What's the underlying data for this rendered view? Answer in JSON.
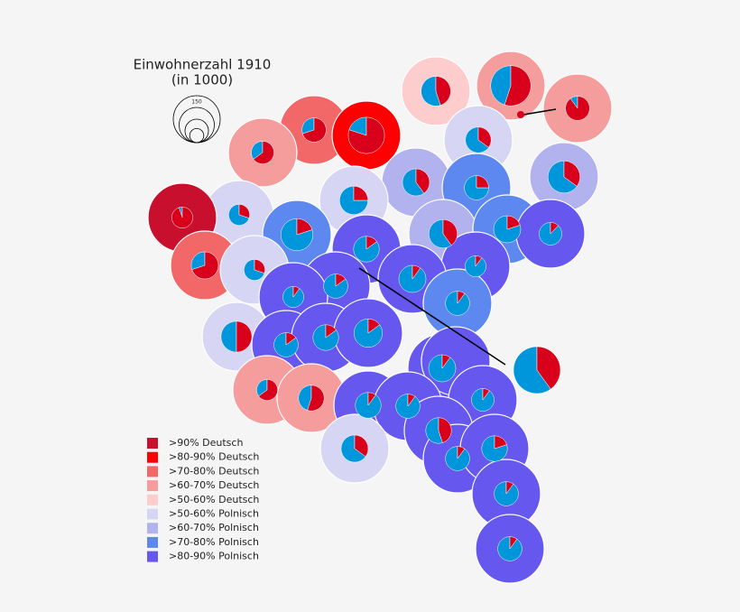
{
  "title": "Einwohnerzahl 1910",
  "subtitle": "(in 1000)",
  "scale": {
    "value": 150
  },
  "legend": {
    "items": [
      {
        "label": ">90% Deutsch",
        "color": "#c8102e"
      },
      {
        "label": ">80-90% Deutsch",
        "color": "#ff0000"
      },
      {
        "label": ">70-80% Deutsch",
        "color": "#f26868"
      },
      {
        "label": ">60-70% Deutsch",
        "color": "#f59c9c"
      },
      {
        "label": ">50-60% Deutsch",
        "color": "#fdcdcd"
      },
      {
        "label": ">50-60% Polnisch",
        "color": "#d6d6f4"
      },
      {
        "label": ">60-70% Polnisch",
        "color": "#b2b2ef"
      },
      {
        "label": ">70-80% Polnisch",
        "color": "#5c88f0"
      },
      {
        "label": ">80-90% Polnisch",
        "color": "#6658ee"
      }
    ]
  },
  "pie_colors": {
    "deutsch": "#d9001b",
    "polnisch": "#0096dc"
  },
  "pies": [
    {
      "deutsch": 45,
      "population": 60
    },
    {
      "deutsch": 55,
      "population": 110
    },
    {
      "deutsch": 90,
      "population": 40
    },
    {
      "deutsch": 70,
      "population": 40
    },
    {
      "deutsch": 80,
      "population": 90
    },
    {
      "deutsch": 65,
      "population": 35
    },
    {
      "deutsch": 35,
      "population": 45
    },
    {
      "deutsch": 40,
      "population": 50
    },
    {
      "deutsch": 35,
      "population": 70
    },
    {
      "deutsch": 25,
      "population": 55
    },
    {
      "deutsch": 30,
      "population": 30
    },
    {
      "deutsch": 95,
      "population": 30
    },
    {
      "deutsch": 25,
      "population": 40
    },
    {
      "deutsch": 20,
      "population": 70
    },
    {
      "deutsch": 40,
      "population": 55
    },
    {
      "deutsch": 20,
      "population": 50
    },
    {
      "deutsch": 12,
      "population": 35
    },
    {
      "deutsch": 70,
      "population": 50
    },
    {
      "deutsch": 15,
      "population": 45
    },
    {
      "deutsch": 30,
      "population": 30
    },
    {
      "deutsch": 10,
      "population": 30
    },
    {
      "deutsch": 10,
      "population": 50
    },
    {
      "deutsch": 15,
      "population": 40
    },
    {
      "deutsch": 10,
      "population": 30
    },
    {
      "deutsch": 10,
      "population": 40
    },
    {
      "deutsch": 50,
      "population": 65
    },
    {
      "deutsch": 15,
      "population": 40
    },
    {
      "deutsch": 15,
      "population": 45
    },
    {
      "deutsch": 15,
      "population": 55
    },
    {
      "deutsch": 10,
      "population": 50
    },
    {
      "deutsch": 40,
      "population": 150
    },
    {
      "deutsch": 65,
      "population": 30
    },
    {
      "deutsch": 55,
      "population": 45
    },
    {
      "deutsch": 10,
      "population": 45
    },
    {
      "deutsch": 10,
      "population": 40
    },
    {
      "deutsch": 10,
      "population": 35
    },
    {
      "deutsch": 45,
      "population": 45
    },
    {
      "deutsch": 35,
      "population": 50
    },
    {
      "deutsch": 10,
      "population": 40
    },
    {
      "deutsch": 20,
      "population": 45
    },
    {
      "deutsch": 10,
      "population": 40
    },
    {
      "deutsch": 10,
      "population": 40
    }
  ]
}
